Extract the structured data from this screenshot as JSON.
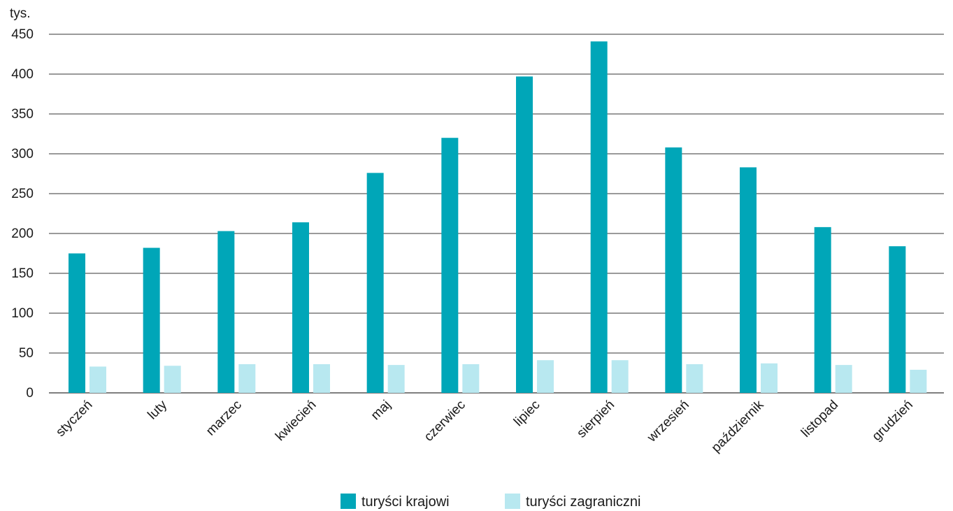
{
  "chart_data": {
    "type": "bar",
    "unit_label": "tys.",
    "categories": [
      "styczeń",
      "luty",
      "marzec",
      "kwiecień",
      "maj",
      "czerwiec",
      "lipiec",
      "sierpień",
      "wrzesień",
      "październik",
      "listopad",
      "grudzień"
    ],
    "series": [
      {
        "name": "turyści krajowi",
        "color": "#00a6b8",
        "values": [
          175,
          182,
          203,
          214,
          276,
          320,
          397,
          441,
          308,
          283,
          208,
          184
        ]
      },
      {
        "name": "turyści zagraniczni",
        "color": "#b8e8f0",
        "values": [
          33,
          34,
          36,
          36,
          35,
          36,
          41,
          41,
          36,
          37,
          35,
          29
        ]
      }
    ],
    "y_ticks": [
      0,
      50,
      100,
      150,
      200,
      250,
      300,
      350,
      400,
      450
    ],
    "ylim": [
      0,
      450
    ],
    "grid": true,
    "legend_position": "bottom"
  }
}
